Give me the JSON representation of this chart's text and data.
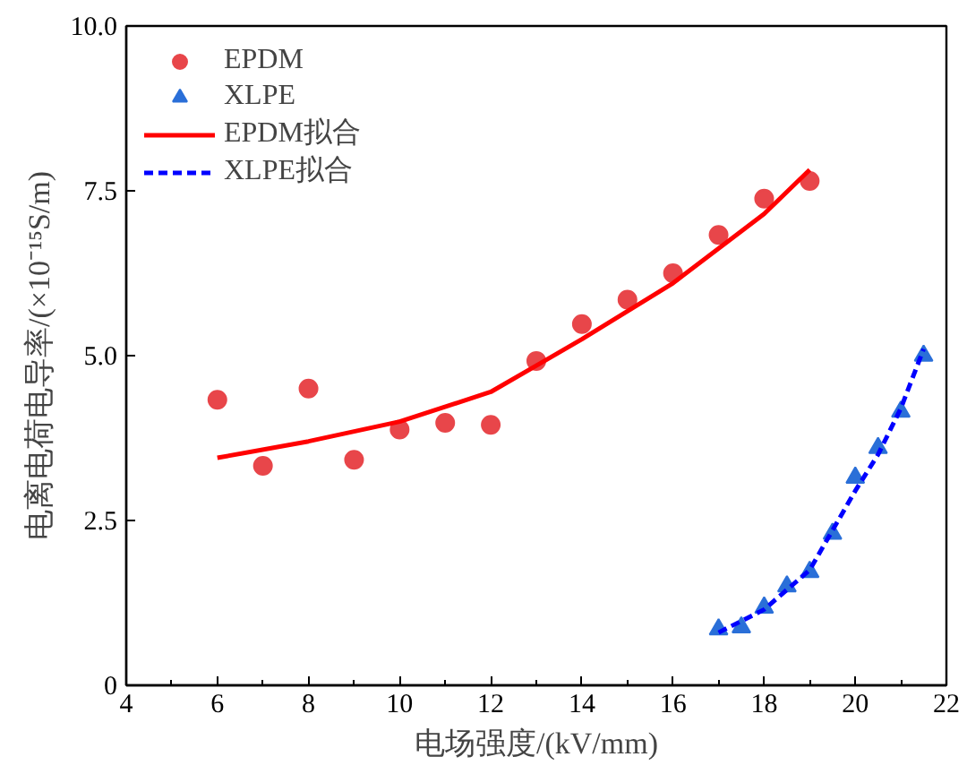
{
  "chart_data": {
    "type": "scatter",
    "xlabel": "电场强度/(kV/mm)",
    "ylabel": "电离电荷电导率/(×10⁻¹⁵S/m)",
    "xlim": [
      4,
      22
    ],
    "xticks": [
      4,
      6,
      8,
      10,
      12,
      14,
      16,
      18,
      20,
      22
    ],
    "ylim": [
      0,
      10
    ],
    "yticks": [
      0,
      2.5,
      {
        "value": 5,
        "label": "5.0"
      },
      7.5,
      {
        "value": 10,
        "label": "10.0"
      }
    ],
    "grid": false,
    "legend": "top left",
    "series": [
      {
        "name": "EPDM",
        "marker": "circle",
        "color": "#e8464a",
        "x": [
          6,
          7,
          8,
          9,
          10,
          11,
          12,
          13,
          14,
          15,
          16,
          17,
          18,
          19
        ],
        "values": [
          4.33,
          3.33,
          4.5,
          3.42,
          3.88,
          3.98,
          3.95,
          4.92,
          5.48,
          5.85,
          6.25,
          6.83,
          7.38,
          7.65
        ]
      },
      {
        "name": "XLPE",
        "marker": "triangle",
        "color": "#2a6fd8",
        "x": [
          17,
          17.5,
          18,
          18.5,
          19,
          19.5,
          20,
          20.5,
          21,
          21.5
        ],
        "values": [
          0.85,
          0.88,
          1.18,
          1.5,
          1.72,
          2.3,
          3.15,
          3.6,
          4.15,
          5.0
        ]
      },
      {
        "name": "EPDM拟合",
        "type": "line",
        "line_style": "solid",
        "color": "#ff0000",
        "x": [
          6,
          8,
          10,
          12,
          13,
          14,
          16,
          18,
          19
        ],
        "values": [
          3.45,
          3.7,
          4.0,
          4.45,
          4.85,
          5.25,
          6.1,
          7.15,
          7.82
        ]
      },
      {
        "name": "XLPE拟合",
        "type": "line",
        "line_style": "dashed",
        "color": "#0000ff",
        "x": [
          17,
          18,
          19,
          20,
          20.5,
          21,
          21.5
        ],
        "values": [
          0.8,
          1.15,
          1.75,
          2.95,
          3.5,
          4.2,
          5.1
        ]
      }
    ]
  }
}
